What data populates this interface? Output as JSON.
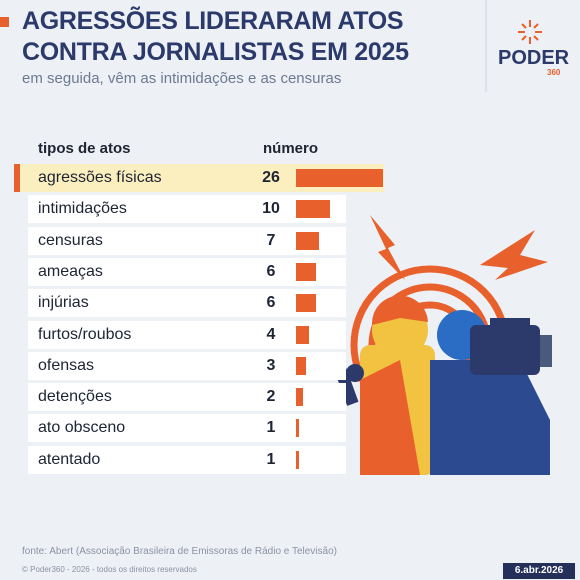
{
  "chart_data": {
    "type": "bar",
    "title": "AGRESSÕES LIDERARAM ATOS CONTRA JORNALISTAS EM 2025",
    "subtitle": "em seguida, vêm as intimidações e as censuras",
    "category_header": "tipos de atos",
    "value_header": "número",
    "categories": [
      "agressões físicas",
      "intimidações",
      "censuras",
      "ameaças",
      "injúrias",
      "furtos/roubos",
      "ofensas",
      "detenções",
      "ato obsceno",
      "atentado"
    ],
    "values": [
      26,
      10,
      7,
      6,
      6,
      4,
      3,
      2,
      1,
      1
    ],
    "color": "#e8602c",
    "source": "fonte: Abert (Associação Brasileira de Emissoras de Rádio e Televisão)",
    "copyright": "© Poder360 - 2026 - todos os direitos reservados",
    "date": "6.abr.2026",
    "logo": "PODER",
    "logo_sub": "360"
  }
}
